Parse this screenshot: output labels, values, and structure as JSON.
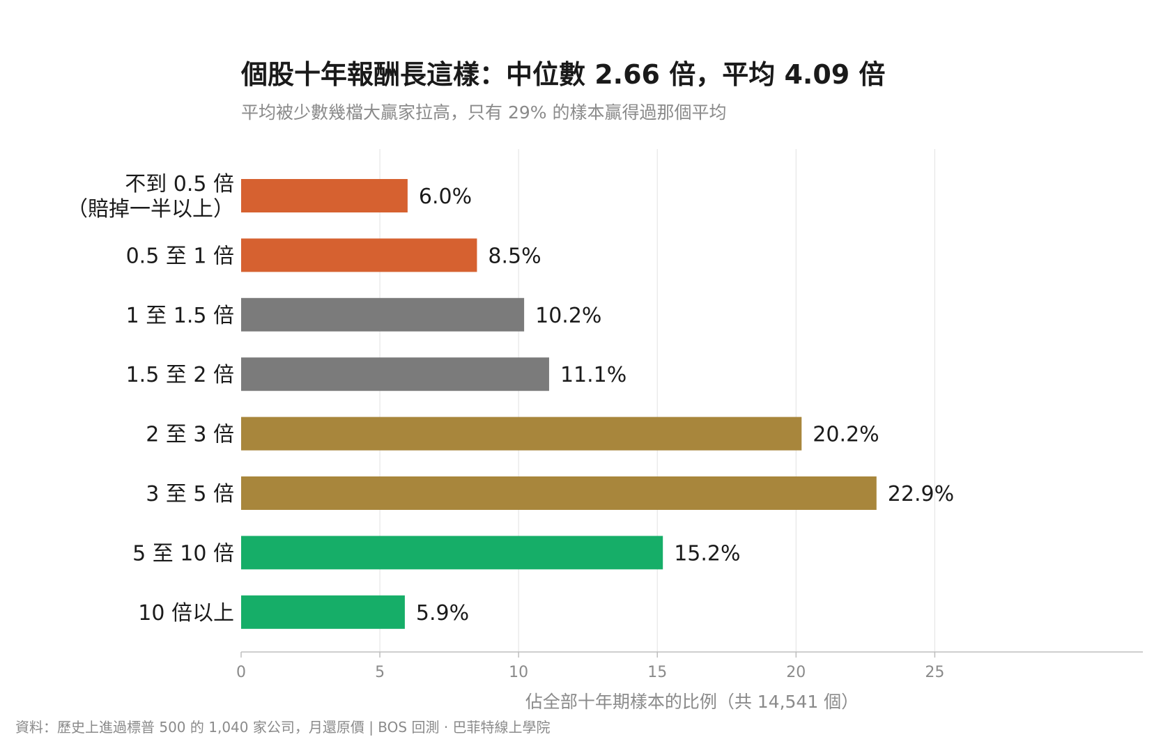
{
  "chart_data": {
    "type": "bar",
    "orientation": "horizontal",
    "title": "個股十年報酬長這樣：中位數 2.66 倍，平均 4.09 倍",
    "subtitle": "平均被少數幾檔大贏家拉高，只有 29% 的樣本贏得過那個平均",
    "categories": [
      [
        "不到 0.5 倍",
        "（賠掉一半以上）"
      ],
      [
        "0.5 至 1 倍"
      ],
      [
        "1 至 1.5 倍"
      ],
      [
        "1.5 至 2 倍"
      ],
      [
        "2 至 3 倍"
      ],
      [
        "3 至 5 倍"
      ],
      [
        "5 至 10 倍"
      ],
      [
        "10 倍以上"
      ]
    ],
    "values": [
      6.0,
      8.5,
      10.2,
      11.1,
      20.2,
      22.9,
      15.2,
      5.9
    ],
    "value_labels": [
      "6.0%",
      "8.5%",
      "10.2%",
      "11.1%",
      "20.2%",
      "22.9%",
      "15.2%",
      "5.9%"
    ],
    "bar_colors": [
      "#d66130",
      "#d66130",
      "#7b7b7b",
      "#7b7b7b",
      "#a8863c",
      "#a8863c",
      "#16ae68",
      "#16ae68"
    ],
    "xlabel": "佔全部十年期樣本的比例（共 14,541 個）",
    "ylabel": "",
    "xlim": [
      0,
      32.5
    ],
    "xticks": [
      0,
      5,
      10,
      15,
      20,
      25
    ],
    "grid": true
  },
  "source": "資料：歷史上進過標普 500 的 1,040 家公司，月還原價 | BOS 回測 · 巴菲特線上學院"
}
